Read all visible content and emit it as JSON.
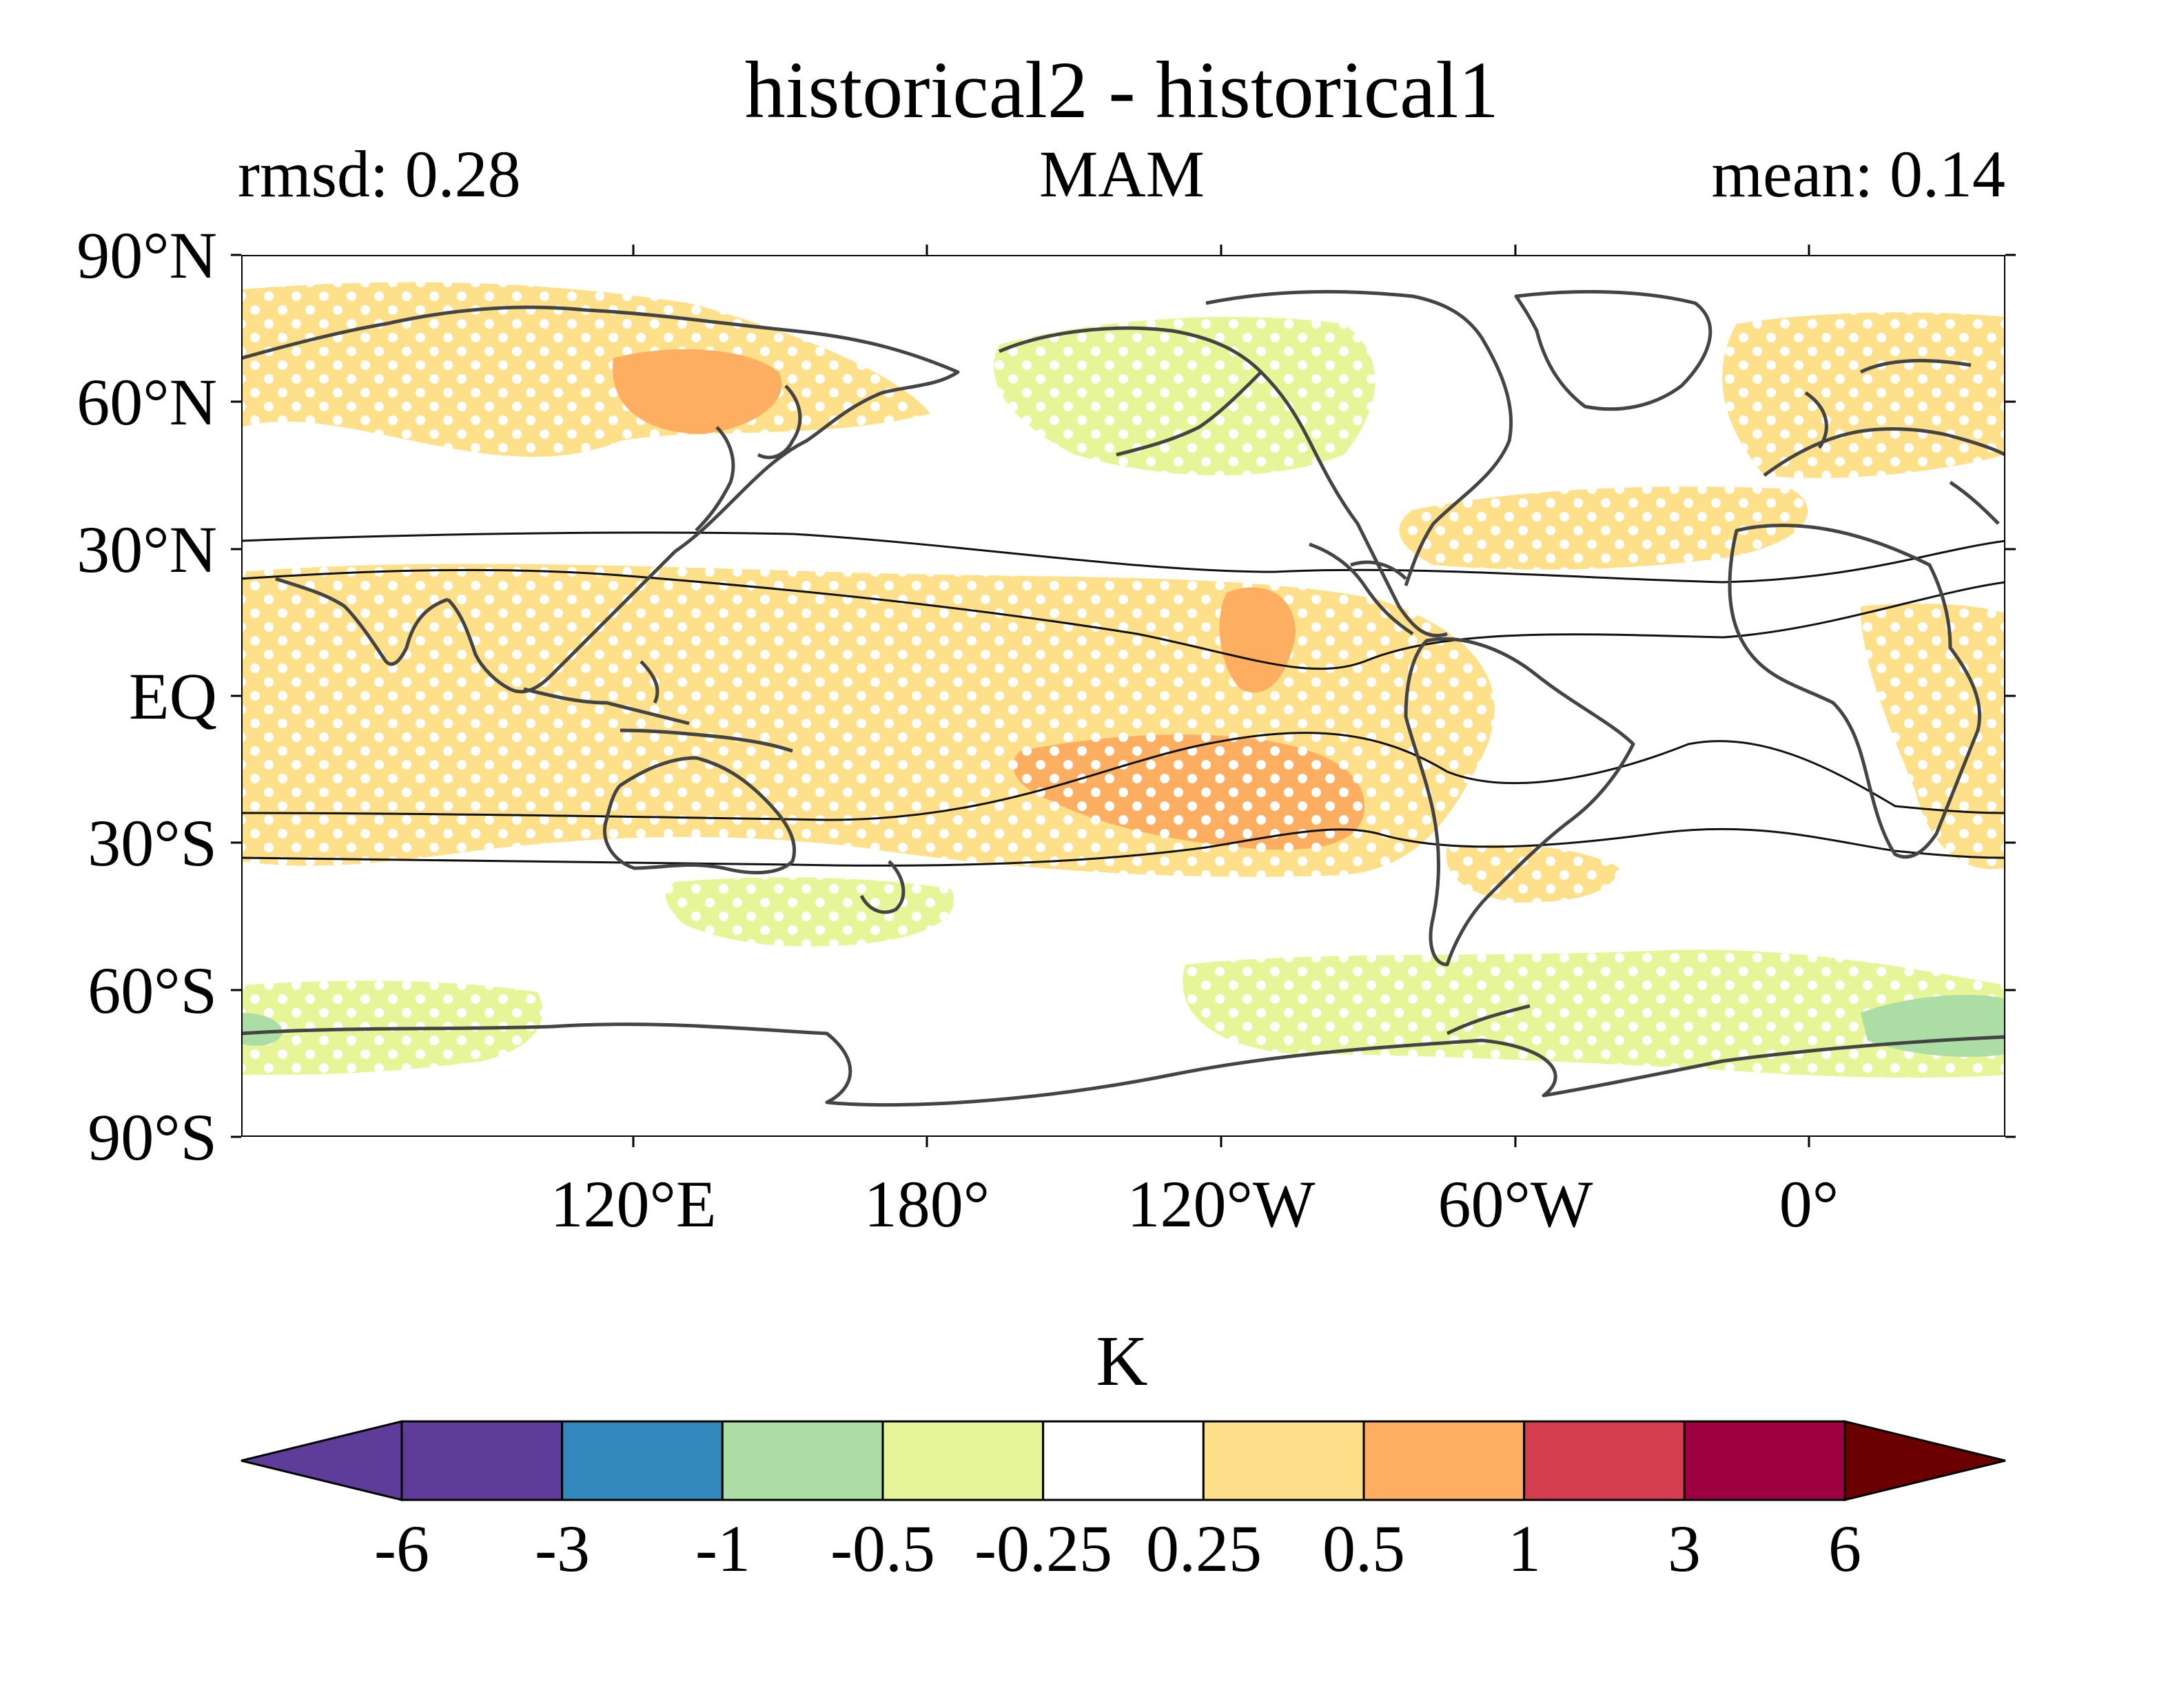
{
  "header": {
    "title": "historical2 - historical1",
    "left_stat": "rmsd: 0.28",
    "season": "MAM",
    "right_stat": "mean: 0.14"
  },
  "map": {
    "y_tick_labels": [
      "90°N",
      "60°N",
      "30°N",
      "EQ",
      "30°S",
      "60°S",
      "90°S"
    ],
    "y_tick_values": [
      90,
      60,
      30,
      0,
      -30,
      -60,
      -90
    ],
    "x_tick_labels": [
      "120°E",
      "180°",
      "120°W",
      "60°W",
      "0°"
    ],
    "x_tick_values": [
      120,
      180,
      240,
      300,
      360
    ],
    "lon_range": [
      40,
      400
    ],
    "lat_range": [
      -90,
      90
    ]
  },
  "colorbar": {
    "unit_label": "K",
    "boundaries": [
      "-6",
      "-3",
      "-1",
      "-0.5",
      "-0.25",
      "0.25",
      "0.5",
      "1",
      "3",
      "6"
    ],
    "colors": [
      "#5e3c99",
      "#3288bd",
      "#abdda4",
      "#e6f598",
      "#ffffff",
      "#fee08b",
      "#fdae61",
      "#d53e4f",
      "#9e0142"
    ],
    "extend_low_color": "#5e3c99",
    "extend_high_color": "#6a0000"
  },
  "colors": {
    "warm_light": "#fee08b",
    "warm_mid": "#fdae61",
    "cool_light": "#e6f598",
    "cool_mid": "#abdda4",
    "coast": "#444444"
  }
}
